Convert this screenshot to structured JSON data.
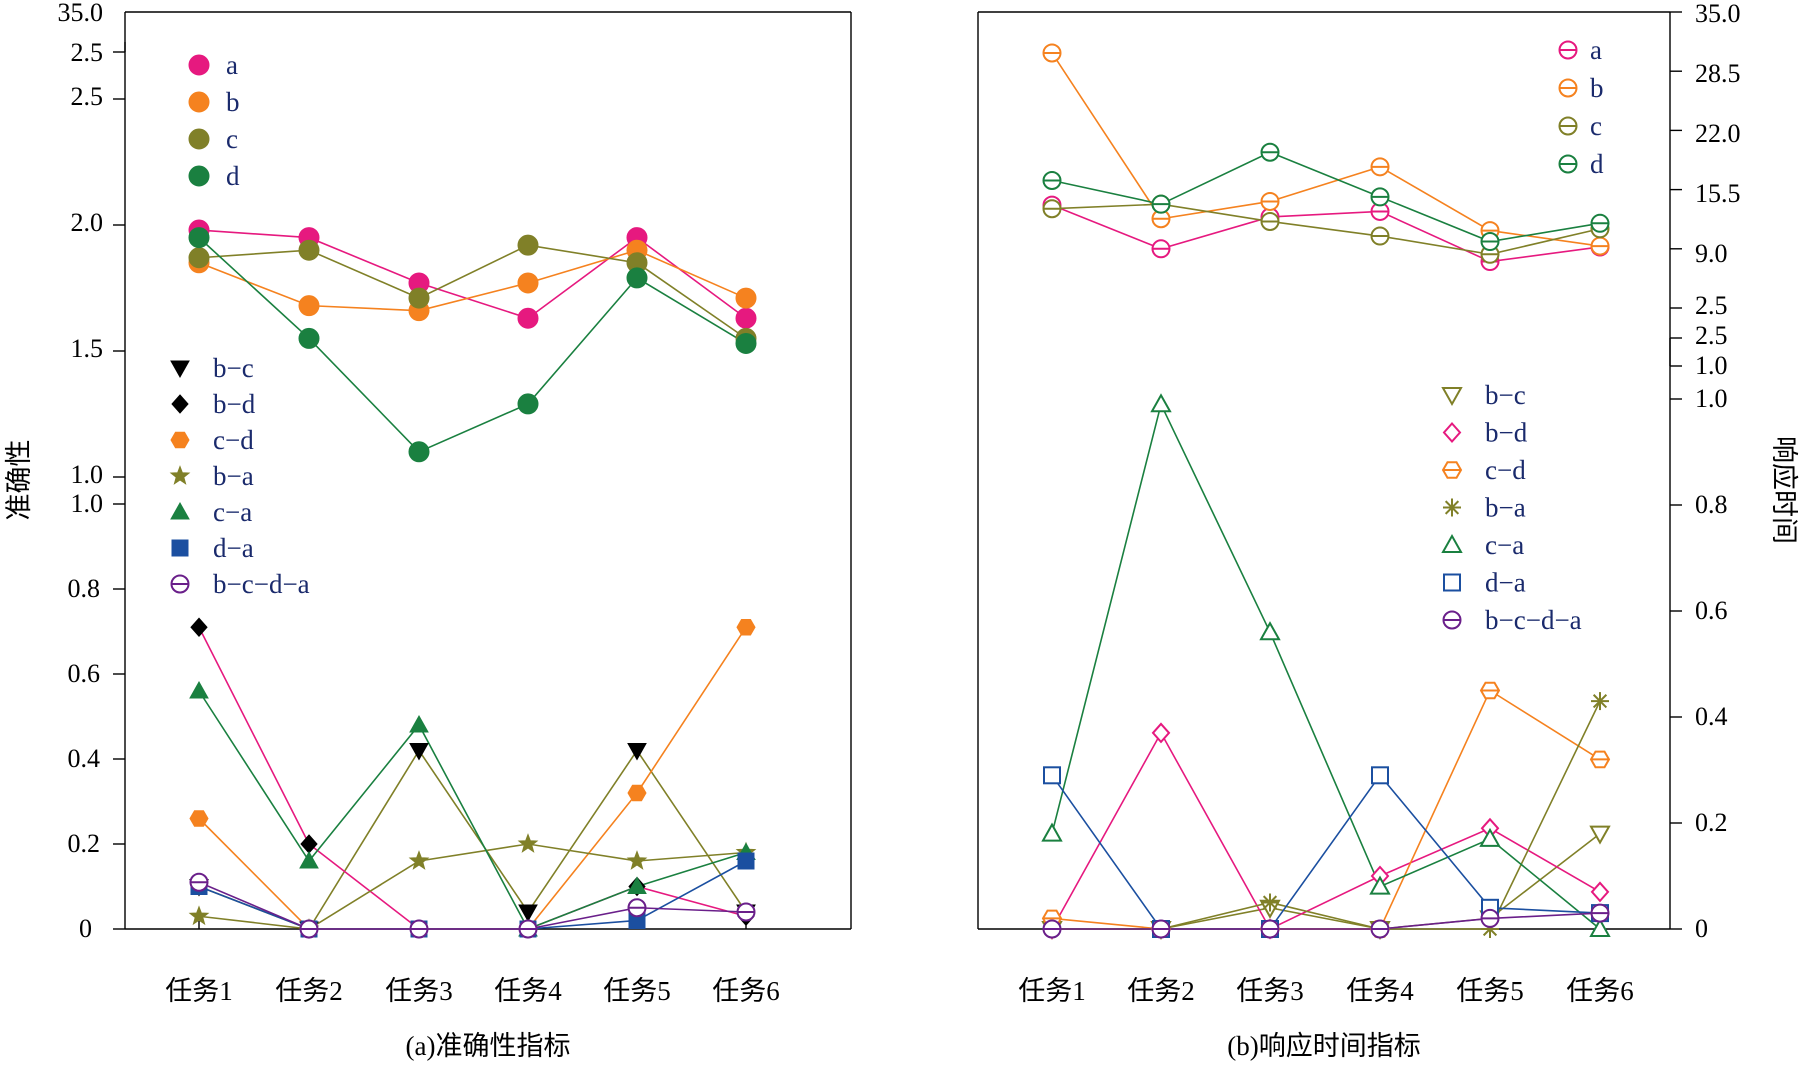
{
  "colors": {
    "a": "#e6197f",
    "b": "#f5821f",
    "c": "#808028",
    "d": "#1a8040",
    "bc": "#000000",
    "bd": "#000000",
    "cd": "#f5821f",
    "ba": "#808028",
    "ca": "#1a8040",
    "da": "#1b4fa0",
    "bcda": "#6a1f8a",
    "line_bc": "#808028",
    "line_bd": "#e6197f",
    "line_cd": "#f5821f",
    "line_ba": "#808028",
    "line_ca": "#1a8040",
    "line_da": "#1b4fa0",
    "line_bcda": "#6a1f8a"
  },
  "chart_data": [
    {
      "type": "line",
      "caption": "(a)准确性指标",
      "ylabel": "准确性",
      "categories": [
        "任务1",
        "任务2",
        "任务3",
        "任务4",
        "任务5",
        "任务6"
      ],
      "y_axis": "broken",
      "upper_ylim": [
        1.0,
        2.5
      ],
      "upper_ticks": [
        "1.0",
        "1.5",
        "2.0",
        "2.5"
      ],
      "lower_ylim": [
        0,
        1.0
      ],
      "lower_ticks": [
        "0",
        "0.2",
        "0.4",
        "0.6",
        "0.8",
        "1.0"
      ],
      "top_break_ticks": [
        "2.5",
        "35.0"
      ],
      "series": [
        {
          "name": "a",
          "key": "a",
          "marker": "circle",
          "filled": true,
          "panel": "upper",
          "values": [
            1.98,
            1.95,
            1.77,
            1.63,
            1.95,
            1.63
          ]
        },
        {
          "name": "b",
          "key": "b",
          "marker": "circle",
          "filled": true,
          "panel": "upper",
          "values": [
            1.85,
            1.68,
            1.66,
            1.77,
            1.9,
            1.71
          ]
        },
        {
          "name": "c",
          "key": "c",
          "marker": "circle",
          "filled": true,
          "panel": "upper",
          "values": [
            1.87,
            1.9,
            1.71,
            1.92,
            1.85,
            1.55
          ]
        },
        {
          "name": "d",
          "key": "d",
          "marker": "circle",
          "filled": true,
          "panel": "upper",
          "values": [
            1.95,
            1.55,
            1.1,
            1.29,
            1.79,
            1.53
          ]
        },
        {
          "name": "b−c",
          "key": "bc",
          "line_key": "line_bc",
          "marker": "triangle-down",
          "filled": true,
          "panel": "lower",
          "values": [
            0.1,
            0.0,
            0.42,
            0.04,
            0.42,
            0.04
          ]
        },
        {
          "name": "b−d",
          "key": "bd",
          "line_key": "line_bd",
          "marker": "diamond",
          "filled": true,
          "panel": "lower",
          "values": [
            0.71,
            0.2,
            0.0,
            0.0,
            0.1,
            0.03
          ]
        },
        {
          "name": "c−d",
          "key": "cd",
          "line_key": "line_cd",
          "marker": "hexagon",
          "filled": true,
          "panel": "lower",
          "values": [
            0.26,
            0.0,
            0.0,
            0.0,
            0.32,
            0.71
          ]
        },
        {
          "name": "b−a",
          "key": "ba",
          "line_key": "line_ba",
          "marker": "star",
          "filled": true,
          "panel": "lower",
          "values": [
            0.03,
            0.0,
            0.16,
            0.2,
            0.16,
            0.18
          ]
        },
        {
          "name": "c−a",
          "key": "ca",
          "line_key": "line_ca",
          "marker": "triangle-up",
          "filled": true,
          "panel": "lower",
          "values": [
            0.56,
            0.16,
            0.48,
            0.0,
            0.1,
            0.18
          ]
        },
        {
          "name": "d−a",
          "key": "da",
          "line_key": "line_da",
          "marker": "square",
          "filled": true,
          "panel": "lower",
          "values": [
            0.1,
            0.0,
            0.0,
            0.0,
            0.02,
            0.16
          ]
        },
        {
          "name": "b−c−d−a",
          "key": "bcda",
          "line_key": "line_bcda",
          "marker": "circle-bar",
          "filled": false,
          "panel": "lower",
          "values": [
            0.11,
            0.0,
            0.0,
            0.0,
            0.05,
            0.04
          ]
        }
      ]
    },
    {
      "type": "line",
      "caption": "(b)响应时间指标",
      "ylabel": "响应时间",
      "categories": [
        "任务1",
        "任务2",
        "任务3",
        "任务4",
        "任务5",
        "任务6"
      ],
      "y_axis": "broken",
      "upper_ylim": [
        2.5,
        35.0
      ],
      "upper_ticks": [
        "2.5",
        "9.0",
        "15.5",
        "22.0",
        "28.5",
        "35.0"
      ],
      "middle_ticks": [
        "1.0",
        "2.5"
      ],
      "lower_ylim": [
        0,
        1.0
      ],
      "lower_ticks": [
        "0",
        "0.2",
        "0.4",
        "0.6",
        "0.8",
        "1.0"
      ],
      "series": [
        {
          "name": "a",
          "key": "a",
          "marker": "circle-bar",
          "filled": false,
          "panel": "upper",
          "values": [
            13.8,
            9.0,
            12.5,
            13.1,
            7.6,
            9.2
          ]
        },
        {
          "name": "b",
          "key": "b",
          "marker": "circle-bar",
          "filled": false,
          "panel": "upper",
          "values": [
            30.5,
            12.3,
            14.2,
            18.0,
            11.0,
            9.3
          ]
        },
        {
          "name": "c",
          "key": "c",
          "marker": "circle-bar",
          "filled": false,
          "panel": "upper",
          "values": [
            13.4,
            13.9,
            12.0,
            10.4,
            8.4,
            11.2
          ]
        },
        {
          "name": "d",
          "key": "d",
          "marker": "circle-bar",
          "filled": false,
          "panel": "upper",
          "values": [
            16.5,
            13.9,
            19.6,
            14.7,
            9.8,
            11.8
          ]
        },
        {
          "name": "b−c",
          "key": "a",
          "line_key": "line_bc",
          "marker_color_key": "c",
          "marker": "triangle-down",
          "filled": false,
          "panel": "lower",
          "values": [
            0.0,
            0.0,
            0.04,
            0.0,
            0.02,
            0.18
          ]
        },
        {
          "name": "b−d",
          "key": "a",
          "line_key": "line_bd",
          "marker": "diamond",
          "filled": false,
          "panel": "lower",
          "values": [
            0.0,
            0.37,
            0.0,
            0.1,
            0.19,
            0.07
          ]
        },
        {
          "name": "c−d",
          "key": "b",
          "line_key": "line_cd",
          "marker": "hexagon",
          "filled": false,
          "panel": "lower",
          "values": [
            0.02,
            0.0,
            0.0,
            0.0,
            0.45,
            0.32
          ]
        },
        {
          "name": "b−a",
          "key": "c",
          "line_key": "line_ba",
          "marker": "asterisk",
          "filled": false,
          "panel": "lower",
          "values": [
            0.0,
            0.0,
            0.05,
            0.0,
            0.0,
            0.43
          ]
        },
        {
          "name": "c−a",
          "key": "d",
          "line_key": "line_ca",
          "marker": "triangle-up",
          "filled": false,
          "panel": "lower",
          "values": [
            0.18,
            0.99,
            0.56,
            0.08,
            0.17,
            0.0
          ]
        },
        {
          "name": "d−a",
          "key": "da",
          "line_key": "line_da",
          "marker": "square",
          "filled": false,
          "panel": "lower",
          "values": [
            0.29,
            0.0,
            0.0,
            0.29,
            0.04,
            0.03
          ]
        },
        {
          "name": "b−c−d−a",
          "key": "bcda",
          "line_key": "line_bcda",
          "marker": "circle-bar",
          "filled": false,
          "panel": "lower",
          "values": [
            0.0,
            0.0,
            0.0,
            0.0,
            0.02,
            0.03
          ]
        }
      ]
    }
  ]
}
